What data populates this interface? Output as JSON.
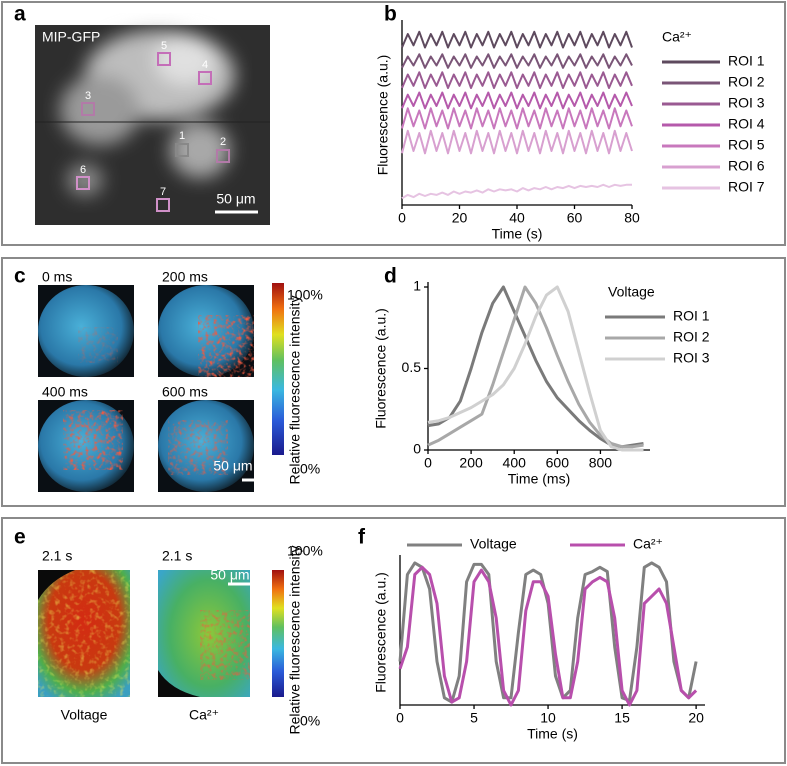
{
  "panel_labels": [
    "a",
    "b",
    "c",
    "d",
    "e",
    "f"
  ],
  "panel_a": {
    "title": "MIP-GFP",
    "rois": [
      "1",
      "2",
      "3",
      "4",
      "5",
      "6",
      "7"
    ],
    "scale_bar": "50 μm"
  },
  "panel_c": {
    "frames": [
      "0 ms",
      "200 ms",
      "400 ms",
      "600 ms"
    ],
    "scale_bar": "50 μm",
    "colorbar": {
      "label": "Relative fluorescence intensity",
      "max": "100%",
      "min": "0%"
    }
  },
  "panel_e": {
    "time_labels": [
      "2.1 s",
      "2.1 s"
    ],
    "image_labels": [
      "Voltage",
      "Ca²⁺"
    ],
    "scale_bar": "50 μm",
    "colorbar": {
      "label": "Relative fluorescence intensity",
      "max": "100%",
      "min": "0%"
    }
  },
  "chart_data": [
    {
      "type": "line",
      "xlabel": "Time (s)",
      "ylabel": "Fluorescence (a.u.)",
      "legend_title": "Ca²⁺",
      "xlim": [
        0,
        80
      ],
      "ylim": [
        0,
        8
      ],
      "xticks": [
        0,
        20,
        40,
        60,
        80
      ],
      "x": [
        0,
        2,
        4,
        6,
        8,
        10,
        12,
        14,
        16,
        18,
        20,
        22,
        24,
        26,
        28,
        30,
        32,
        34,
        36,
        38,
        40,
        42,
        44,
        46,
        48,
        50,
        52,
        54,
        56,
        58,
        60,
        62,
        64,
        66,
        68,
        70,
        72,
        74,
        76,
        78,
        80
      ],
      "series": [
        {
          "name": "ROI 1",
          "color": "#5e4a5e",
          "values": [
            7.0,
            7.6,
            7.1,
            7.7,
            7.0,
            7.6,
            7.1,
            7.7,
            7.0,
            7.6,
            7.1,
            7.7,
            7.0,
            7.6,
            7.1,
            7.7,
            7.0,
            7.6,
            7.1,
            7.7,
            7.0,
            7.6,
            7.1,
            7.7,
            7.0,
            7.6,
            7.1,
            7.7,
            7.0,
            7.6,
            7.1,
            7.7,
            7.0,
            7.6,
            7.1,
            7.7,
            7.0,
            7.6,
            7.1,
            7.7,
            7.0
          ]
        },
        {
          "name": "ROI 2",
          "color": "#7a5577",
          "values": [
            6.1,
            6.6,
            6.2,
            6.7,
            6.1,
            6.6,
            6.2,
            6.7,
            6.1,
            6.6,
            6.2,
            6.7,
            6.1,
            6.6,
            6.2,
            6.7,
            6.1,
            6.6,
            6.2,
            6.7,
            6.1,
            6.6,
            6.2,
            6.7,
            6.1,
            6.6,
            6.2,
            6.7,
            6.1,
            6.6,
            6.2,
            6.7,
            6.1,
            6.6,
            6.2,
            6.7,
            6.1,
            6.6,
            6.2,
            6.7,
            6.2
          ]
        },
        {
          "name": "ROI 3",
          "color": "#9a5a92",
          "values": [
            5.2,
            5.8,
            5.3,
            5.9,
            5.2,
            5.8,
            5.3,
            5.9,
            5.2,
            5.8,
            5.3,
            5.9,
            5.2,
            5.8,
            5.3,
            5.9,
            5.2,
            5.8,
            5.3,
            5.9,
            5.2,
            5.8,
            5.3,
            5.9,
            5.2,
            5.8,
            5.3,
            5.9,
            5.2,
            5.8,
            5.3,
            5.9,
            5.2,
            5.8,
            5.3,
            5.9,
            5.2,
            5.8,
            5.3,
            5.9,
            5.3
          ]
        },
        {
          "name": "ROI 4",
          "color": "#b55aab",
          "values": [
            4.3,
            4.9,
            4.4,
            5.0,
            4.3,
            4.9,
            4.4,
            5.0,
            4.3,
            4.9,
            4.4,
            5.0,
            4.3,
            4.9,
            4.4,
            5.0,
            4.3,
            4.9,
            4.4,
            5.0,
            4.3,
            4.9,
            4.4,
            5.0,
            4.3,
            4.9,
            4.4,
            5.0,
            4.3,
            4.9,
            4.4,
            5.0,
            4.3,
            4.9,
            4.4,
            5.0,
            4.3,
            4.9,
            4.4,
            5.0,
            4.4
          ]
        },
        {
          "name": "ROI 5",
          "color": "#c878bd",
          "values": [
            3.4,
            4.3,
            3.5,
            4.2,
            3.4,
            4.3,
            3.5,
            4.2,
            3.4,
            4.3,
            3.5,
            4.2,
            3.4,
            4.3,
            3.5,
            4.2,
            3.4,
            4.3,
            3.5,
            4.2,
            3.4,
            4.3,
            3.5,
            4.2,
            3.4,
            4.3,
            3.5,
            4.2,
            3.4,
            4.3,
            3.5,
            4.2,
            3.4,
            4.3,
            3.5,
            4.2,
            3.4,
            4.3,
            3.5,
            4.2,
            3.5
          ]
        },
        {
          "name": "ROI 6",
          "color": "#d8a0d0",
          "values": [
            2.3,
            3.3,
            2.4,
            3.2,
            2.3,
            3.3,
            2.4,
            3.2,
            2.3,
            3.3,
            2.4,
            3.2,
            2.3,
            3.3,
            2.4,
            3.2,
            2.3,
            3.3,
            2.4,
            3.2,
            2.3,
            3.3,
            2.4,
            3.2,
            2.3,
            3.3,
            2.4,
            3.2,
            2.3,
            3.3,
            2.4,
            3.2,
            2.3,
            3.3,
            2.4,
            3.2,
            2.3,
            3.3,
            2.4,
            3.2,
            2.4
          ]
        },
        {
          "name": "ROI 7",
          "color": "#e6c3e2",
          "values": [
            0.3,
            0.45,
            0.35,
            0.5,
            0.4,
            0.5,
            0.45,
            0.55,
            0.45,
            0.6,
            0.5,
            0.6,
            0.55,
            0.65,
            0.55,
            0.7,
            0.6,
            0.7,
            0.65,
            0.7,
            0.6,
            0.75,
            0.65,
            0.75,
            0.7,
            0.8,
            0.7,
            0.8,
            0.75,
            0.85,
            0.75,
            0.85,
            0.8,
            0.85,
            0.8,
            0.9,
            0.8,
            0.9,
            0.85,
            0.9,
            0.9
          ]
        }
      ]
    },
    {
      "type": "line",
      "xlabel": "Time (ms)",
      "ylabel": "Fluorescence (a.u.)",
      "legend_title": "Voltage",
      "xlim": [
        0,
        1030
      ],
      "ylim": [
        0,
        1
      ],
      "xticks": [
        0,
        200,
        400,
        600,
        800
      ],
      "yticks": [
        0,
        0.5,
        1
      ],
      "x": [
        0,
        50,
        100,
        150,
        200,
        250,
        300,
        350,
        400,
        450,
        500,
        550,
        600,
        650,
        700,
        750,
        800,
        850,
        900,
        950,
        1000
      ],
      "series": [
        {
          "name": "ROI 1",
          "color": "#7a7a7a",
          "values": [
            0.15,
            0.16,
            0.2,
            0.3,
            0.5,
            0.72,
            0.9,
            1,
            0.85,
            0.7,
            0.55,
            0.42,
            0.32,
            0.25,
            0.18,
            0.12,
            0.07,
            0.03,
            0.02,
            0.03,
            0.04
          ]
        },
        {
          "name": "ROI 2",
          "color": "#a8a8a8",
          "values": [
            0.03,
            0.06,
            0.1,
            0.14,
            0.18,
            0.22,
            0.4,
            0.6,
            0.8,
            1,
            0.9,
            0.75,
            0.58,
            0.42,
            0.28,
            0.17,
            0.09,
            0.04,
            0.02,
            0.02,
            0.03
          ]
        },
        {
          "name": "ROI 3",
          "color": "#d0d0d0",
          "values": [
            0.17,
            0.18,
            0.2,
            0.23,
            0.26,
            0.3,
            0.34,
            0.4,
            0.5,
            0.65,
            0.82,
            0.95,
            1,
            0.85,
            0.6,
            0.35,
            0.12,
            0.02,
            0.0,
            0.0,
            0.0
          ]
        }
      ]
    },
    {
      "type": "line",
      "xlabel": "Time (s)",
      "ylabel": "Fluorescence (a.u.)",
      "xlim": [
        0,
        20.6
      ],
      "ylim": [
        0,
        1
      ],
      "xticks": [
        0,
        5,
        10,
        15,
        20
      ],
      "x": [
        0,
        0.5,
        1,
        1.5,
        2,
        2.5,
        3,
        3.5,
        4,
        4.5,
        5,
        5.5,
        6,
        6.5,
        7,
        7.5,
        8,
        8.5,
        9,
        9.5,
        10,
        10.5,
        11,
        11.5,
        12,
        12.5,
        13,
        13.5,
        14,
        14.5,
        15,
        15.5,
        16,
        16.5,
        17,
        17.5,
        18,
        18.5,
        19,
        19.5,
        20
      ],
      "series": [
        {
          "name": "Voltage",
          "color": "#808080",
          "values": [
            0.3,
            0.9,
            0.98,
            0.95,
            0.8,
            0.3,
            0.05,
            0.02,
            0.2,
            0.85,
            0.97,
            0.97,
            0.9,
            0.3,
            0.05,
            0.05,
            0.5,
            0.9,
            0.93,
            0.9,
            0.7,
            0.2,
            0.05,
            0.1,
            0.6,
            0.9,
            0.92,
            0.95,
            0.92,
            0.4,
            0.05,
            0.03,
            0.4,
            0.95,
            0.98,
            0.95,
            0.85,
            0.3,
            0.1,
            0.05,
            0.3
          ]
        },
        {
          "name": "Ca²⁺",
          "color": "#b84fac",
          "values": [
            0.25,
            0.4,
            0.9,
            0.95,
            0.9,
            0.7,
            0.2,
            0.02,
            0.05,
            0.3,
            0.85,
            0.93,
            0.85,
            0.6,
            0.1,
            0.0,
            0.1,
            0.65,
            0.85,
            0.85,
            0.75,
            0.35,
            0.05,
            0.05,
            0.3,
            0.8,
            0.85,
            0.88,
            0.85,
            0.6,
            0.1,
            0.0,
            0.1,
            0.7,
            0.75,
            0.8,
            0.7,
            0.4,
            0.1,
            0.05,
            0.1
          ]
        }
      ]
    }
  ]
}
